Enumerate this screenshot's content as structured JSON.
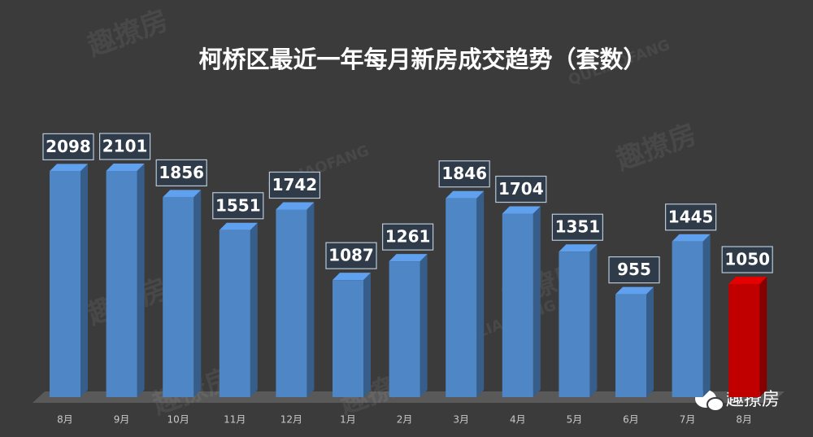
{
  "chart_data": {
    "type": "bar",
    "title": "柯桥区最近一年每月新房成交趋势（套数）",
    "categories": [
      "8月",
      "9月",
      "10月",
      "11月",
      "12月",
      "1月",
      "2月",
      "3月",
      "4月",
      "5月",
      "6月",
      "7月",
      "8月"
    ],
    "values": [
      2098,
      2101,
      1856,
      1551,
      1742,
      1087,
      1261,
      1846,
      1704,
      1351,
      955,
      1445,
      1050
    ],
    "colors": [
      "#4f86c6",
      "#4f86c6",
      "#4f86c6",
      "#4f86c6",
      "#4f86c6",
      "#4f86c6",
      "#4f86c6",
      "#4f86c6",
      "#4f86c6",
      "#4f86c6",
      "#4f86c6",
      "#4f86c6",
      "#c00000"
    ],
    "watermark": [
      "趣撩房",
      "QULIAOFANG"
    ],
    "logo": "趣撩房"
  }
}
